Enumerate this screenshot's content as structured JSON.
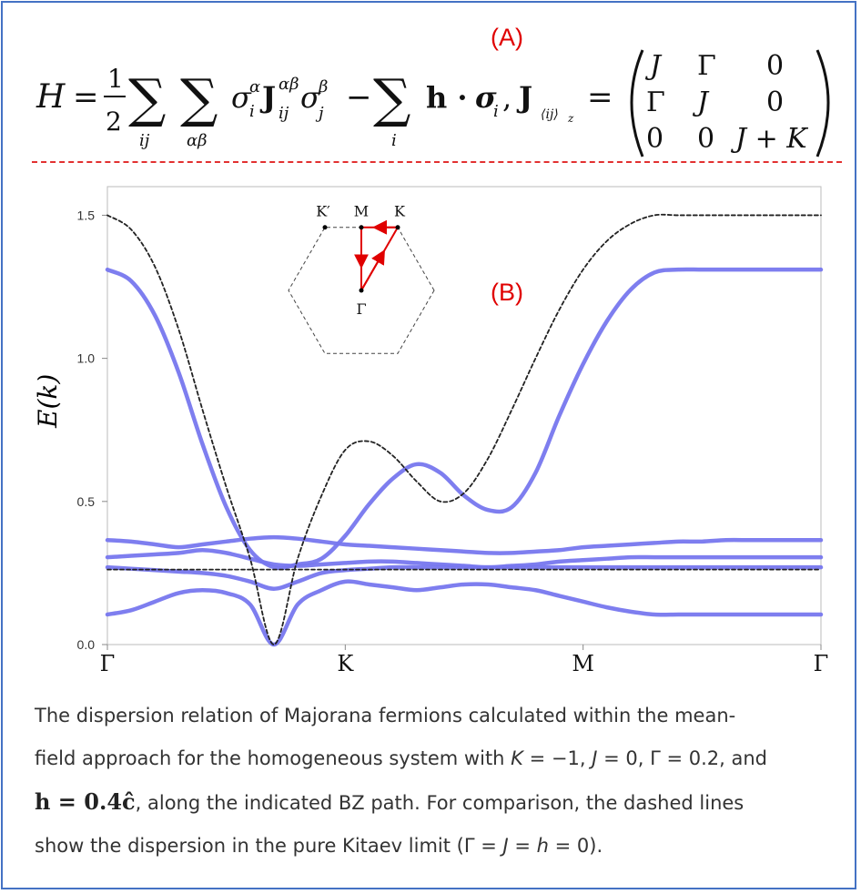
{
  "panel_a": {
    "label": "(A)",
    "formula": {
      "lhs": "H",
      "eq": "=",
      "half_num": "1",
      "half_den": "2",
      "sigma1": "σ",
      "sub_i": "i",
      "sup_alpha": "α",
      "J": "J",
      "sub_ij": "ij",
      "sup_ab": "αβ",
      "sigma2": "σ",
      "sub_j": "j",
      "sup_beta": "β",
      "minus": "−",
      "h_dot": "h · ",
      "sigma3": "σ",
      "sub_i2": "i",
      "comma": ",",
      "sum1_index": "ij",
      "sum2_index": "αβ",
      "sum3_index": "i",
      "Jz": "J",
      "Jz_sub": "⟨ij⟩",
      "Jz_subsub": "z",
      "eq2": "=",
      "matrix": [
        [
          "J",
          "Γ",
          "0"
        ],
        [
          "Γ",
          "J",
          "0"
        ],
        [
          "0",
          "0",
          "J + K"
        ]
      ]
    }
  },
  "panel_b": {
    "label": "(B)"
  },
  "chart_data": {
    "type": "line",
    "ylabel": "E(k)",
    "xlabel": "",
    "x_ticks": [
      "Γ",
      "K",
      "M",
      "Γ"
    ],
    "y_ticks": [
      0.0,
      0.5,
      1.0,
      1.5
    ],
    "y_tick_labels": [
      "0.0",
      "0.5",
      "1.0",
      "1.5"
    ],
    "ylim": [
      0,
      1.6
    ],
    "x": [
      0,
      0.1,
      0.2,
      0.3,
      0.4,
      0.5,
      0.6,
      0.7,
      0.8,
      0.9,
      1.0,
      1.1,
      1.2,
      1.3,
      1.4,
      1.5,
      1.6,
      1.7,
      1.8,
      1.9,
      2.0,
      2.1,
      2.2,
      2.3,
      2.4,
      2.5,
      2.6,
      2.7,
      2.8,
      2.9,
      3.0
    ],
    "colors": {
      "bands": "#7777ee",
      "kitaev": "#222222"
    },
    "series": [
      {
        "style": "solid",
        "values": [
          1.31,
          1.27,
          1.15,
          0.95,
          0.7,
          0.48,
          0.33,
          0.27,
          0.28,
          0.3,
          0.38,
          0.49,
          0.58,
          0.63,
          0.6,
          0.52,
          0.47,
          0.48,
          0.6,
          0.8,
          0.98,
          1.13,
          1.24,
          1.3,
          1.31,
          1.31,
          1.31,
          1.31,
          1.31,
          1.31,
          1.31
        ]
      },
      {
        "style": "solid",
        "values": [
          0.365,
          0.36,
          0.35,
          0.34,
          0.35,
          0.36,
          0.37,
          0.375,
          0.37,
          0.36,
          0.35,
          0.345,
          0.34,
          0.335,
          0.33,
          0.325,
          0.32,
          0.32,
          0.325,
          0.33,
          0.34,
          0.345,
          0.35,
          0.355,
          0.36,
          0.36,
          0.365,
          0.365,
          0.365,
          0.365,
          0.365
        ]
      },
      {
        "style": "solid",
        "values": [
          0.305,
          0.31,
          0.315,
          0.32,
          0.33,
          0.32,
          0.3,
          0.28,
          0.275,
          0.28,
          0.285,
          0.29,
          0.29,
          0.285,
          0.28,
          0.275,
          0.27,
          0.275,
          0.28,
          0.29,
          0.295,
          0.3,
          0.305,
          0.305,
          0.305,
          0.305,
          0.305,
          0.305,
          0.305,
          0.305,
          0.305
        ]
      },
      {
        "style": "solid",
        "values": [
          0.105,
          0.12,
          0.15,
          0.18,
          0.19,
          0.18,
          0.14,
          0.0,
          0.14,
          0.19,
          0.22,
          0.21,
          0.2,
          0.19,
          0.2,
          0.21,
          0.21,
          0.2,
          0.19,
          0.17,
          0.15,
          0.13,
          0.115,
          0.105,
          0.105,
          0.105,
          0.105,
          0.105,
          0.105,
          0.105,
          0.105
        ]
      },
      {
        "style": "solid",
        "values": [
          0.27,
          0.265,
          0.26,
          0.255,
          0.25,
          0.24,
          0.22,
          0.195,
          0.22,
          0.25,
          0.26,
          0.265,
          0.27,
          0.27,
          0.27,
          0.27,
          0.27,
          0.27,
          0.27,
          0.27,
          0.27,
          0.27,
          0.27,
          0.27,
          0.27,
          0.27,
          0.27,
          0.27,
          0.27,
          0.27,
          0.27
        ]
      },
      {
        "style": "dashed",
        "values": [
          1.5,
          1.45,
          1.32,
          1.1,
          0.82,
          0.55,
          0.3,
          0.0,
          0.3,
          0.52,
          0.68,
          0.71,
          0.66,
          0.57,
          0.5,
          0.53,
          0.65,
          0.82,
          1.0,
          1.17,
          1.31,
          1.41,
          1.47,
          1.5,
          1.5,
          1.5,
          1.5,
          1.5,
          1.5,
          1.5,
          1.5
        ]
      },
      {
        "style": "dashed",
        "values": [
          0.262,
          0.262,
          0.262,
          0.262,
          0.262,
          0.262,
          0.262,
          0.262,
          0.262,
          0.262,
          0.262,
          0.262,
          0.262,
          0.262,
          0.262,
          0.262,
          0.262,
          0.262,
          0.262,
          0.262,
          0.262,
          0.262,
          0.262,
          0.262,
          0.262,
          0.262,
          0.262,
          0.262,
          0.262,
          0.262,
          0.262
        ]
      }
    ],
    "inset": {
      "points": [
        "K′",
        "M",
        "K",
        "Γ"
      ],
      "path_color": "#e00000"
    }
  },
  "caption": {
    "line1": "The dispersion relation of Majorana fermions calculated within the mean-",
    "line2a": "field approach for the homogeneous system with ",
    "line2_K": "K",
    "line2b": " = −1, ",
    "line2_J": "J",
    "line2c": " = 0, Γ = 0.2, and",
    "line3_math": "h = 0.4ĉ",
    "line3b": ", along the indicated BZ path. For comparison, the dashed lines",
    "line4a": "show the dispersion in the pure Kitaev limit (Γ = ",
    "line4_J": "J",
    "line4b": " = ",
    "line4_h": "h",
    "line4c": " = 0)."
  }
}
